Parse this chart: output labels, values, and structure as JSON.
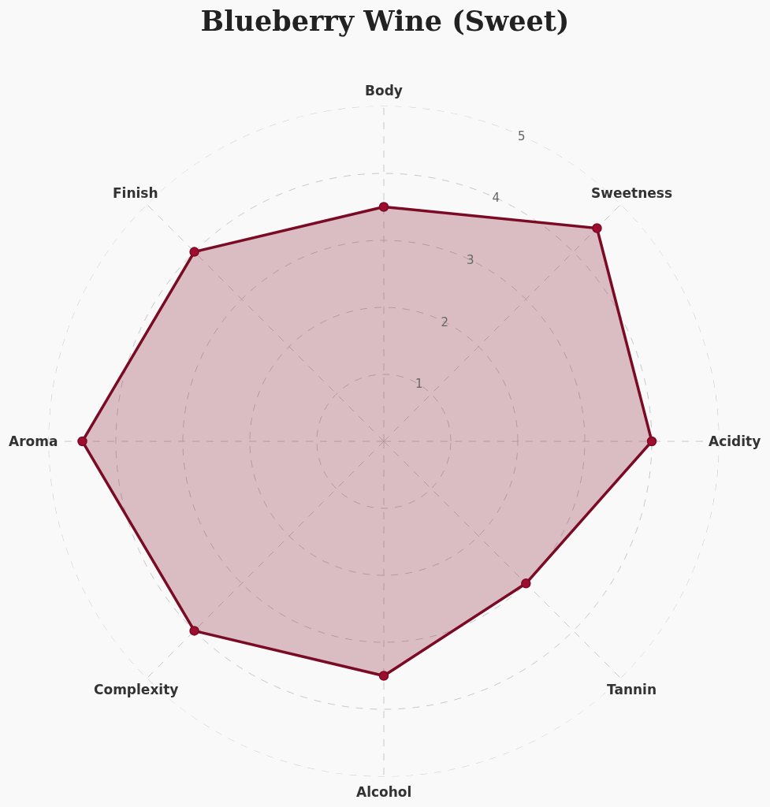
{
  "chart_data": {
    "type": "radar",
    "title": "Blueberry Wine (Sweet)",
    "categories": [
      "Body",
      "Sweetness",
      "Acidity",
      "Tannin",
      "Alcohol",
      "Complexity",
      "Aroma",
      "Finish"
    ],
    "series": [
      {
        "color": "#7b0a24",
        "values": [
          3.5,
          4.5,
          4.0,
          3.0,
          3.5,
          4.0,
          4.5,
          4.0
        ]
      }
    ],
    "ylim": [
      0,
      5
    ],
    "yticks": [
      1,
      2,
      3,
      4,
      5
    ],
    "grid": true,
    "marker": "circle",
    "line_style": "solid"
  }
}
